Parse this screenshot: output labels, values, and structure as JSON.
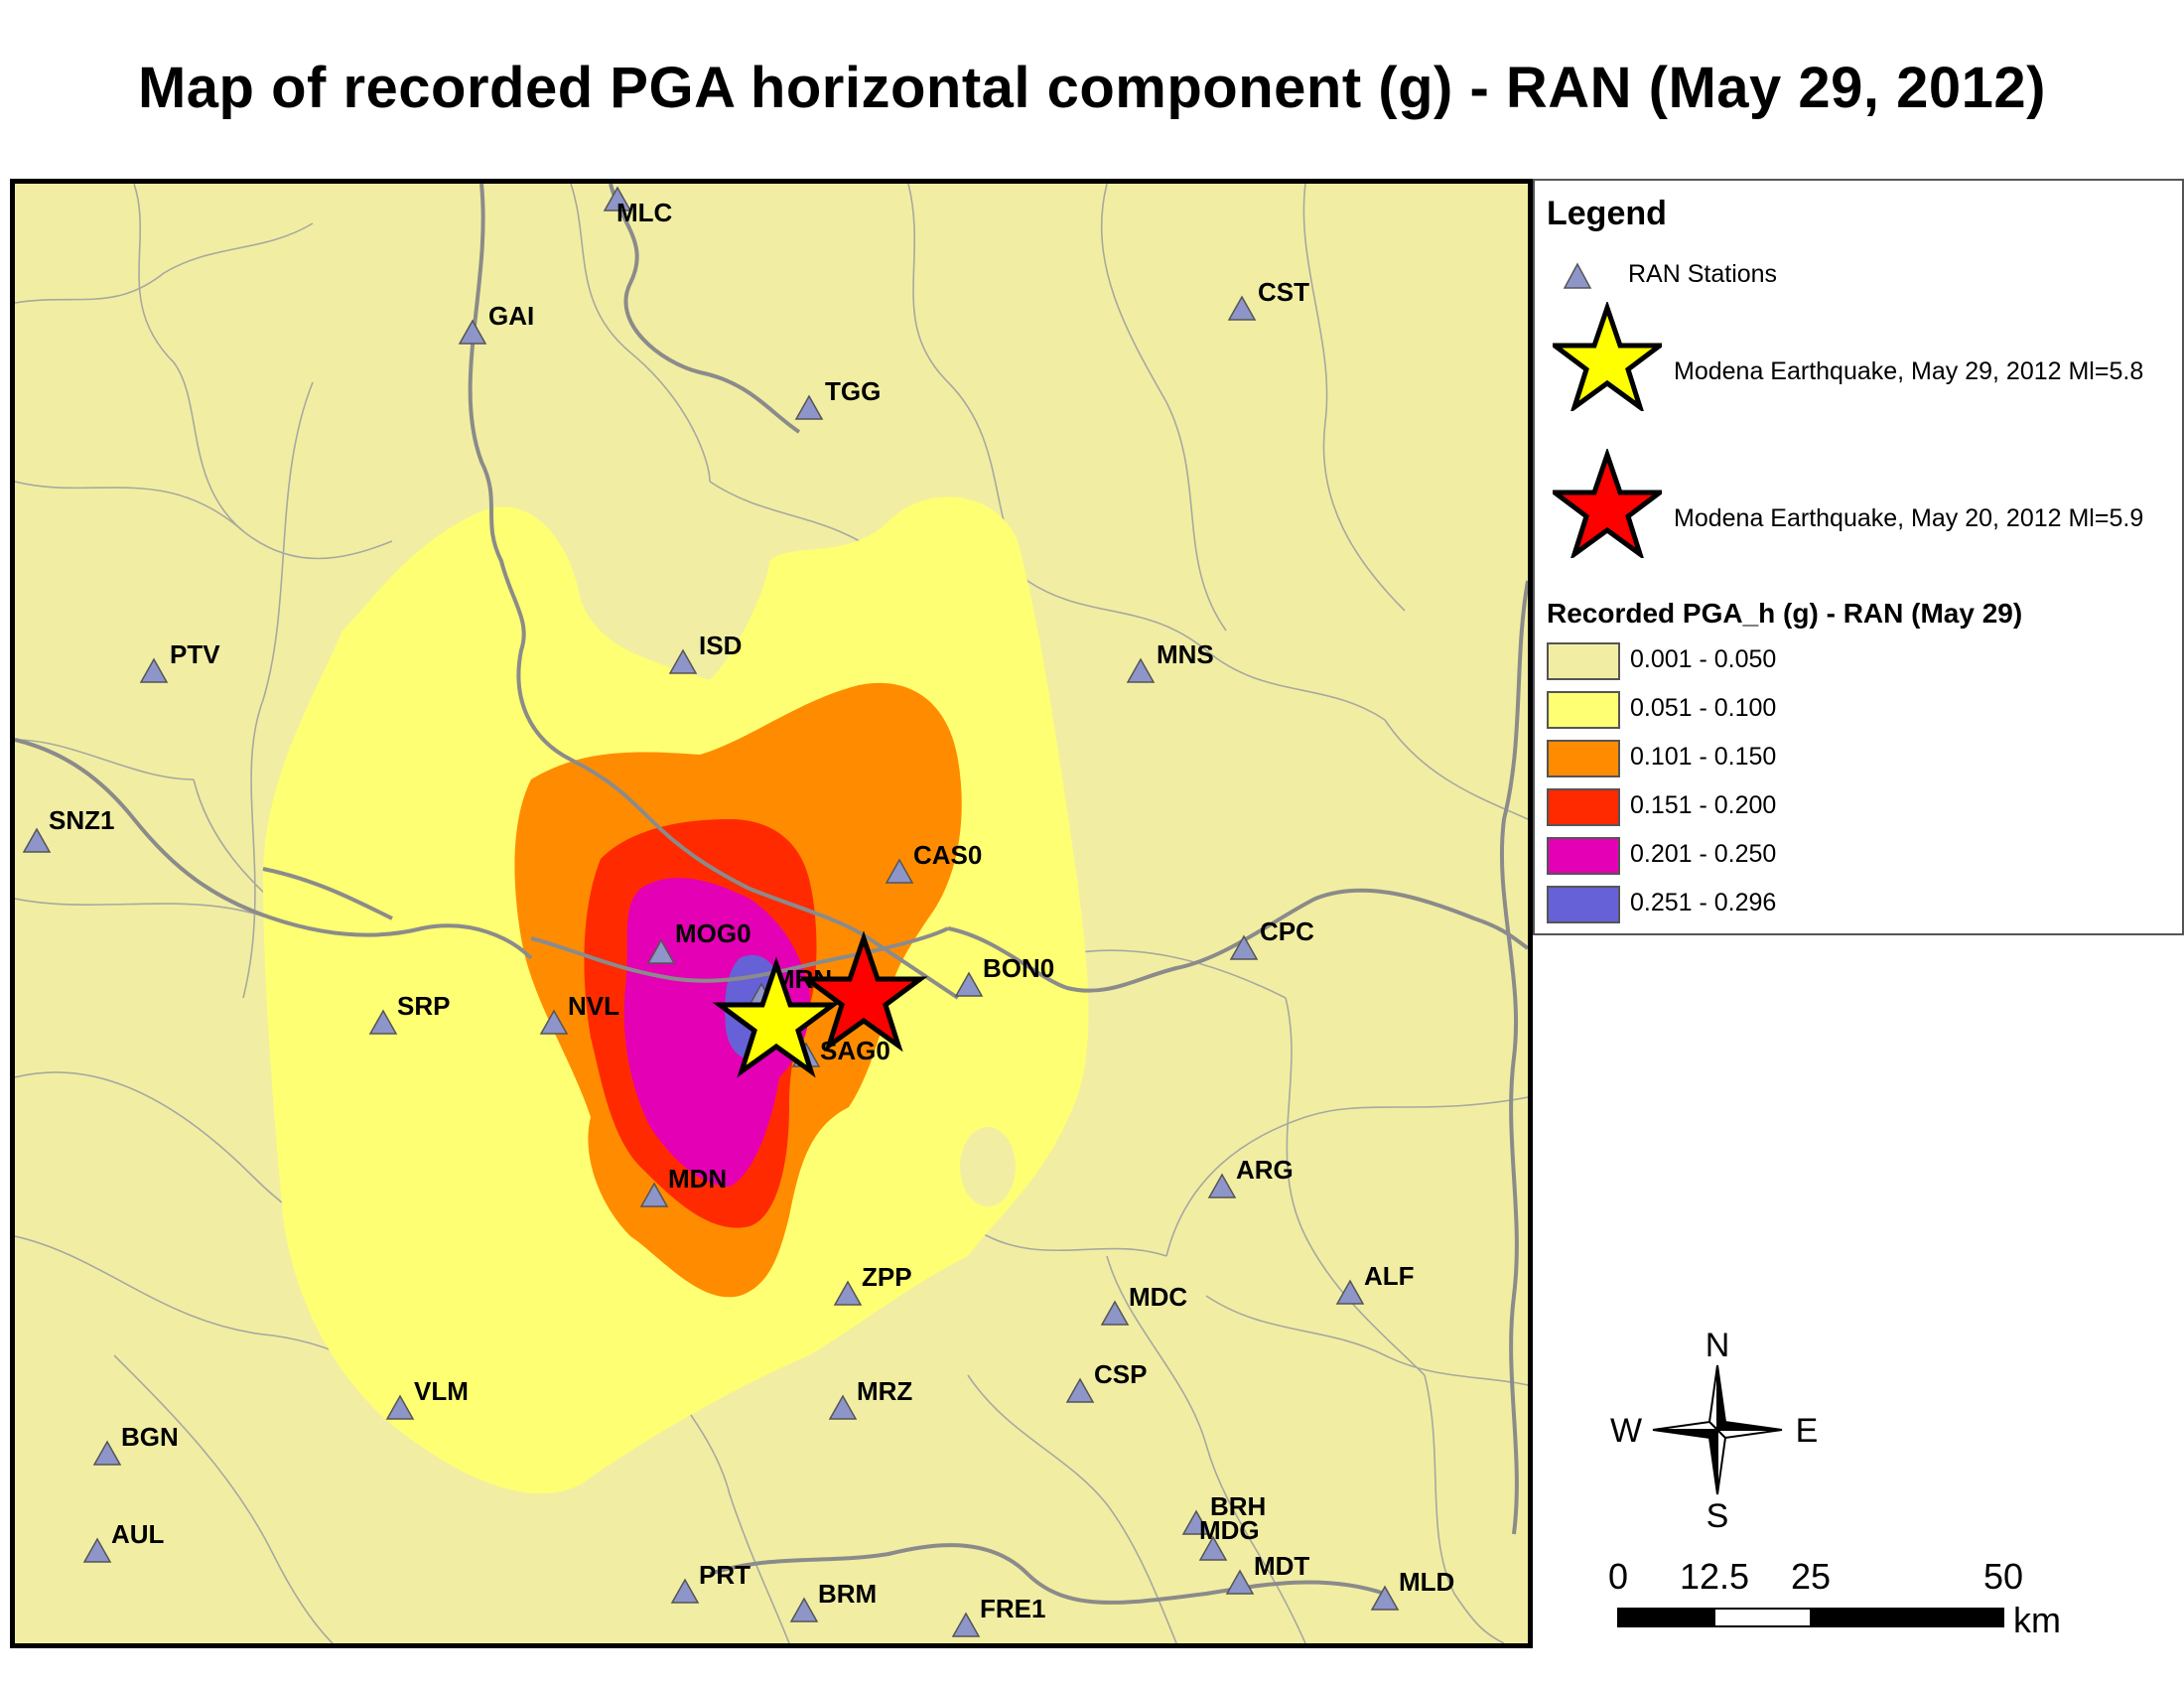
{
  "title": "Map of recorded PGA horizontal component (g) - RAN  (May 29, 2012)",
  "legend": {
    "title": "Legend",
    "stations_label": "RAN Stations",
    "quake1_label": "Modena Earthquake, May 29, 2012 Ml=5.8",
    "quake2_label": "Modena Earthquake, May 20, 2012 Ml=5.9",
    "pga_title": "Recorded PGA_h (g) - RAN (May 29)",
    "classes": [
      {
        "label": "0.001 - 0.050",
        "color": "#f1eea3"
      },
      {
        "label": "0.051 - 0.100",
        "color": "#ffff73"
      },
      {
        "label": "0.101 - 0.150",
        "color": "#ff8c00"
      },
      {
        "label": "0.151 - 0.200",
        "color": "#ff2a00"
      },
      {
        "label": "0.201 - 0.250",
        "color": "#e300b5"
      },
      {
        "label": "0.251 - 0.296",
        "color": "#6661d6"
      }
    ]
  },
  "compass": {
    "n": "N",
    "s": "S",
    "e": "E",
    "w": "W"
  },
  "scale": {
    "ticks": [
      "0",
      "12.5",
      "25",
      "50"
    ],
    "unit": "km"
  },
  "stations": [
    {
      "name": "MLC"
    },
    {
      "name": "GAI"
    },
    {
      "name": "TGG"
    },
    {
      "name": "CST"
    },
    {
      "name": "PTV"
    },
    {
      "name": "ISD"
    },
    {
      "name": "MNS"
    },
    {
      "name": "SNZ1"
    },
    {
      "name": "CAS0"
    },
    {
      "name": "MOG0"
    },
    {
      "name": "CPC"
    },
    {
      "name": "BON0"
    },
    {
      "name": "MRN"
    },
    {
      "name": "SRP"
    },
    {
      "name": "NVL"
    },
    {
      "name": "SAG0"
    },
    {
      "name": "ARG"
    },
    {
      "name": "MDN"
    },
    {
      "name": "ZPP"
    },
    {
      "name": "ALF"
    },
    {
      "name": "MDC"
    },
    {
      "name": "VLM"
    },
    {
      "name": "MRZ"
    },
    {
      "name": "CSP"
    },
    {
      "name": "BGN"
    },
    {
      "name": "BRH"
    },
    {
      "name": "AUL"
    },
    {
      "name": "MDG"
    },
    {
      "name": "PRT"
    },
    {
      "name": "MDT"
    },
    {
      "name": "BRM"
    },
    {
      "name": "MLD"
    },
    {
      "name": "FRE1"
    }
  ]
}
